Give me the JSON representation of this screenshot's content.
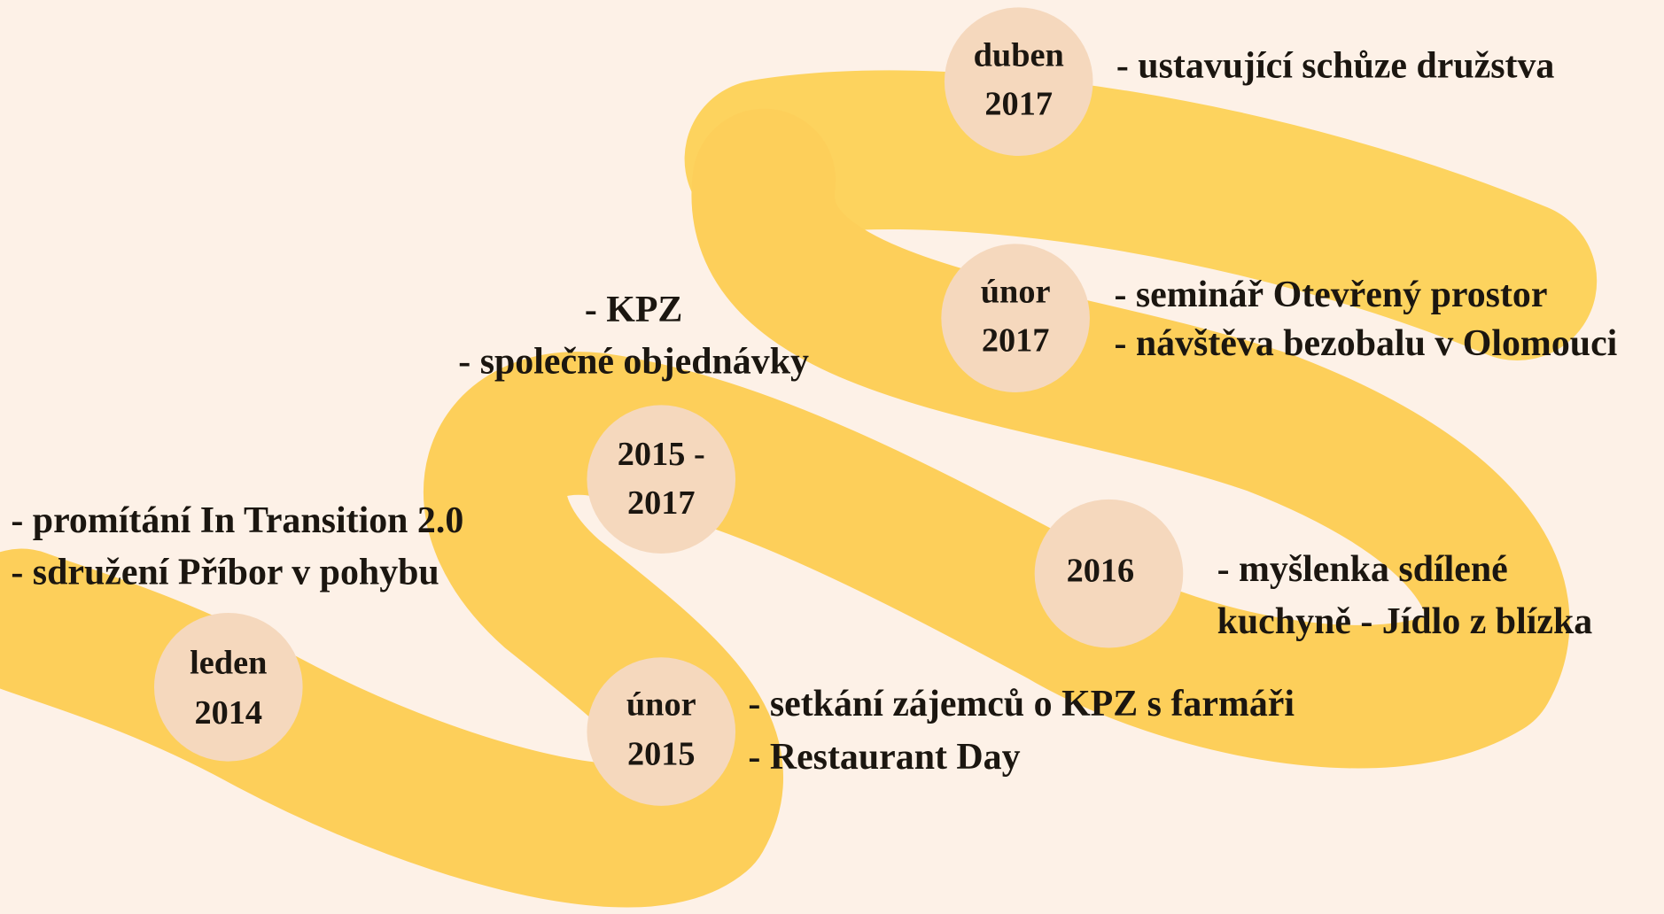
{
  "nodes": [
    {
      "date": [
        "leden",
        "2014"
      ],
      "items": [
        "- promítání In Transition 2.0",
        "- sdružení Příbor v pohybu"
      ]
    },
    {
      "date": [
        "únor",
        "2015"
      ],
      "items": [
        "- setkání zájemců o KPZ s farmáři",
        "- Restaurant Day"
      ]
    },
    {
      "date": [
        "2015 -",
        "2017"
      ],
      "items": [
        "- KPZ",
        "- společné objednávky"
      ]
    },
    {
      "date": [
        "2016"
      ],
      "items": [
        "- myšlenka sdílené",
        "kuchyně - Jídlo z blízka"
      ]
    },
    {
      "date": [
        "únor",
        "2017"
      ],
      "items": [
        "- seminář Otevřený prostor",
        "- návštěva bezobalu v Olomouci"
      ]
    },
    {
      "date": [
        "duben",
        "2017"
      ],
      "items": [
        "- ustavující schůze družstva"
      ]
    }
  ]
}
